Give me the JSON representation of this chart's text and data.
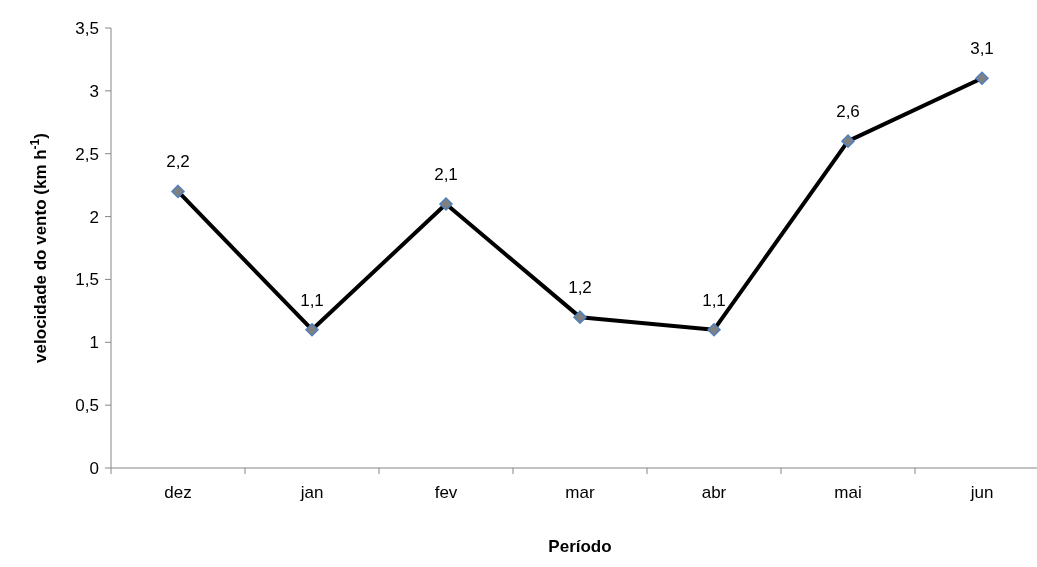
{
  "chart_data": {
    "type": "line",
    "xlabel": "Período",
    "ylabel": "velocidade do vento (km h$^{-1}$)",
    "categories": [
      "dez",
      "jan",
      "fev",
      "mar",
      "abr",
      "mai",
      "jun"
    ],
    "series": [
      {
        "color": "#000000",
        "values": [
          2.2,
          1.1,
          2.1,
          1.2,
          1.1,
          2.6,
          3.1
        ],
        "value_labels": [
          "2,2",
          "1,1",
          "2,1",
          "1,2",
          "1,1",
          "2,6",
          "3,1"
        ]
      }
    ],
    "ylim": [
      0,
      3.5
    ],
    "yticks": [
      0,
      {
        "value": 0.5,
        "label": "0,5"
      },
      1,
      {
        "value": 1.5,
        "label": "1,5"
      },
      2,
      {
        "value": 2.5,
        "label": "2,5"
      },
      3,
      {
        "value": 3.5,
        "label": "3,5"
      }
    ],
    "marker": "diamond",
    "line_style": "solid",
    "grid": false
  }
}
